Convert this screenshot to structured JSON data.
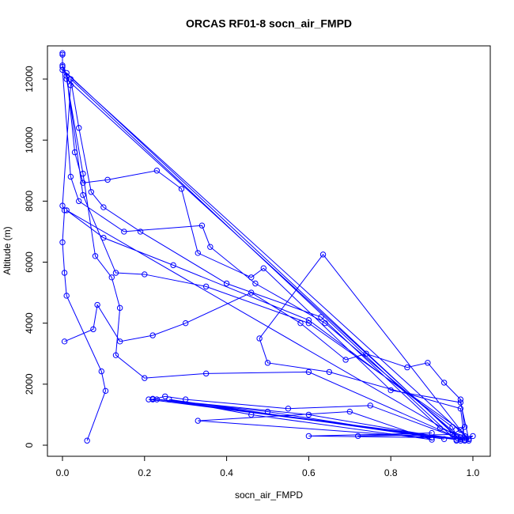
{
  "chart_data": {
    "type": "line",
    "title": "ORCAS RF01-8 socn_air_FMPD",
    "x_label": "socn_air_FMPD",
    "y_label": "Altitude (m)",
    "xlim": [
      -0.0366,
      1.0424
    ],
    "ylim": [
      -363,
      13089
    ],
    "xticks": [
      {
        "value": 0,
        "label": "0.0"
      },
      0.2,
      0.4,
      0.6,
      0.8,
      {
        "value": 1,
        "label": "1.0"
      }
    ],
    "yticks": [
      0,
      2000,
      4000,
      6000,
      8000,
      10000,
      12000
    ],
    "markers": true,
    "x": [
      0.06,
      0.105,
      0.095,
      0.01,
      0.005,
      0.0,
      0.005,
      0.0,
      0.02,
      0.0,
      0.0,
      0.0,
      0.0,
      0.01,
      0.05,
      0.13,
      0.2,
      0.35,
      0.6,
      0.97,
      0.99,
      0.96,
      0.02,
      0.04,
      0.07,
      0.1,
      0.19,
      0.4,
      0.63,
      0.92,
      0.98,
      0.97,
      0.01,
      0.03,
      0.05,
      0.11,
      0.23,
      0.29,
      0.33,
      0.46,
      0.49,
      0.8,
      0.97,
      0.99,
      0.0,
      0.02,
      0.04,
      0.15,
      0.34,
      0.36,
      0.47,
      0.64,
      0.97,
      1.0,
      0.98,
      0.01,
      0.1,
      0.27,
      0.6,
      0.95,
      0.96,
      0.01,
      0.05,
      0.08,
      0.12,
      0.14,
      0.13,
      0.2,
      0.35,
      0.6,
      0.97,
      0.99,
      0.635,
      0.48,
      0.5,
      0.65,
      0.97,
      0.98,
      0.21,
      0.22,
      0.25,
      0.3,
      0.55,
      0.75,
      0.97,
      0.22,
      0.6,
      0.96,
      0.23,
      0.5,
      0.93,
      0.26,
      0.46,
      0.9,
      0.7,
      0.33,
      0.9,
      0.6,
      0.9,
      0.72,
      0.95,
      0.98,
      0.97,
      0.93,
      0.89,
      0.84,
      0.74,
      0.69,
      0.58,
      0.46,
      0.3,
      0.22,
      0.14,
      0.085,
      0.075,
      0.005
    ],
    "series": [
      {
        "color": "#0000ff",
        "values": [
          150,
          1780,
          2420,
          4900,
          5650,
          6650,
          7700,
          7850,
          11800,
          12450,
          12850,
          12800,
          12400,
          12100,
          8200,
          5650,
          5600,
          5200,
          4000,
          500,
          200,
          150,
          12000,
          10400,
          8300,
          7800,
          7000,
          5300,
          4200,
          550,
          300,
          150,
          12200,
          9600,
          8600,
          8700,
          9000,
          8400,
          6300,
          5500,
          5800,
          1800,
          1400,
          200,
          12300,
          8800,
          8000,
          7000,
          7200,
          6500,
          5300,
          4000,
          250,
          300,
          150,
          7700,
          6800,
          5900,
          4100,
          600,
          300,
          12000,
          8900,
          6200,
          5500,
          4500,
          2950,
          2200,
          2350,
          2400,
          200,
          150,
          6250,
          3500,
          2700,
          2400,
          1200,
          180,
          1500,
          1500,
          1600,
          1500,
          1200,
          1300,
          200,
          1520,
          1000,
          180,
          1500,
          1100,
          200,
          1500,
          1000,
          180,
          1100,
          800,
          250,
          300,
          400,
          300,
          350,
          600,
          1500,
          2050,
          2700,
          2550,
          3000,
          2800,
          4000,
          5000,
          4000,
          3600,
          3400,
          4600,
          3800,
          3400
        ]
      }
    ]
  }
}
